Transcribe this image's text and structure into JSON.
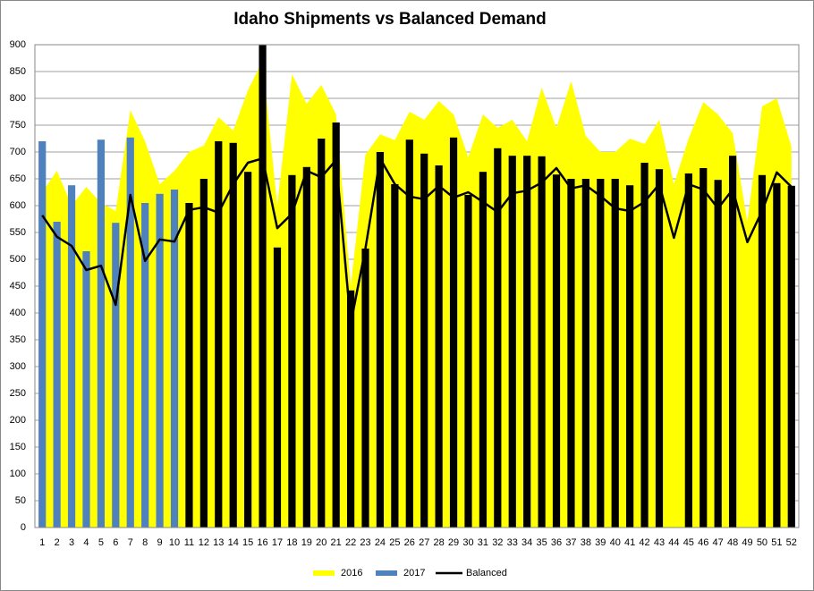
{
  "chart_data": {
    "type": "combo",
    "title": "Idaho Shipments vs Balanced Demand",
    "categories": [
      "1",
      "2",
      "3",
      "4",
      "5",
      "6",
      "7",
      "8",
      "9",
      "10",
      "11",
      "12",
      "13",
      "14",
      "15",
      "16",
      "17",
      "18",
      "19",
      "20",
      "21",
      "22",
      "23",
      "24",
      "25",
      "26",
      "27",
      "28",
      "29",
      "30",
      "31",
      "32",
      "33",
      "34",
      "35",
      "36",
      "37",
      "38",
      "39",
      "40",
      "41",
      "42",
      "43",
      "44",
      "45",
      "46",
      "47",
      "48",
      "49",
      "50",
      "51",
      "52"
    ],
    "ylim": [
      0,
      900
    ],
    "yticks": [
      0,
      50,
      100,
      150,
      200,
      250,
      300,
      350,
      400,
      450,
      500,
      550,
      600,
      650,
      700,
      750,
      800,
      850,
      900
    ],
    "grid": true,
    "legend": "bottom",
    "series": [
      {
        "name": "2016",
        "kind": "area",
        "color": "#ffff00",
        "values": [
          625,
          665,
          600,
          635,
          605,
          590,
          778,
          720,
          640,
          665,
          700,
          712,
          765,
          740,
          815,
          870,
          600,
          845,
          790,
          825,
          770,
          450,
          695,
          733,
          722,
          775,
          760,
          795,
          770,
          690,
          770,
          745,
          760,
          720,
          820,
          745,
          832,
          730,
          700,
          700,
          725,
          715,
          760,
          640,
          725,
          793,
          770,
          735,
          570,
          785,
          800,
          710
        ]
      },
      {
        "name": "2017",
        "kind": "bar",
        "color": "#4f81bd",
        "values": [
          720,
          570,
          638,
          515,
          723,
          568,
          727,
          605,
          622,
          630,
          null,
          null,
          null,
          null,
          null,
          null,
          null,
          null,
          null,
          null,
          null,
          null,
          null,
          null,
          null,
          null,
          null,
          null,
          null,
          null,
          null,
          null,
          null,
          null,
          null,
          null,
          null,
          null,
          null,
          null,
          null,
          null,
          null,
          null,
          null,
          null,
          null,
          null,
          null,
          null,
          null,
          null
        ]
      },
      {
        "kind": "bar",
        "color": "#000000",
        "values": [
          null,
          null,
          null,
          null,
          null,
          null,
          null,
          null,
          null,
          null,
          605,
          650,
          720,
          717,
          663,
          900,
          522,
          657,
          672,
          725,
          755,
          442,
          520,
          700,
          640,
          723,
          697,
          675,
          727,
          620,
          663,
          707,
          693,
          693,
          692,
          658,
          650,
          650,
          650,
          650,
          638,
          680,
          668,
          null,
          660,
          670,
          648,
          693,
          null,
          657,
          642,
          637
        ]
      },
      {
        "name": "Balanced",
        "kind": "line",
        "color": "#000000",
        "values": [
          582,
          542,
          525,
          480,
          488,
          415,
          620,
          497,
          537,
          533,
          592,
          597,
          587,
          640,
          680,
          688,
          558,
          585,
          665,
          653,
          685,
          380,
          520,
          688,
          640,
          617,
          612,
          637,
          615,
          625,
          607,
          588,
          623,
          628,
          643,
          670,
          632,
          638,
          618,
          595,
          590,
          607,
          640,
          540,
          640,
          630,
          595,
          630,
          532,
          590,
          662,
          635
        ]
      }
    ]
  }
}
